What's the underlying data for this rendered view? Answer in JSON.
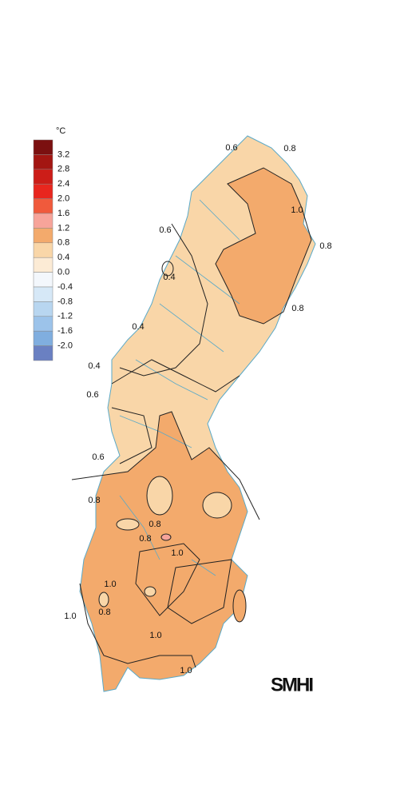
{
  "legend": {
    "unit": "°C",
    "labels": [
      "3.2",
      "2.8",
      "2.4",
      "2.0",
      "1.6",
      "1.2",
      "0.8",
      "0.4",
      "0.0",
      "-0.4",
      "-0.8",
      "-1.2",
      "-1.6",
      "-2.0"
    ],
    "colors": [
      "#7b1010",
      "#a31612",
      "#cc1d18",
      "#e8261e",
      "#f05a3c",
      "#f7a49a",
      "#f3aa6c",
      "#f9d6a8",
      "#fcebd5",
      "#f3f7fc",
      "#d6e8f7",
      "#b8d6f0",
      "#9cc3ea",
      "#80aedf",
      "#6a80c2"
    ]
  },
  "contour_labels": [
    "0.6",
    "0.8",
    "1.0",
    "0.8",
    "0.6",
    "0.4",
    "0.8",
    "0.4",
    "0.4",
    "0.6",
    "0.6",
    "0.8",
    "0.8",
    "0.8",
    "1.0",
    "1.0",
    "0.8",
    "1.0",
    "1.0",
    "1.0"
  ],
  "logo": "SMHI"
}
